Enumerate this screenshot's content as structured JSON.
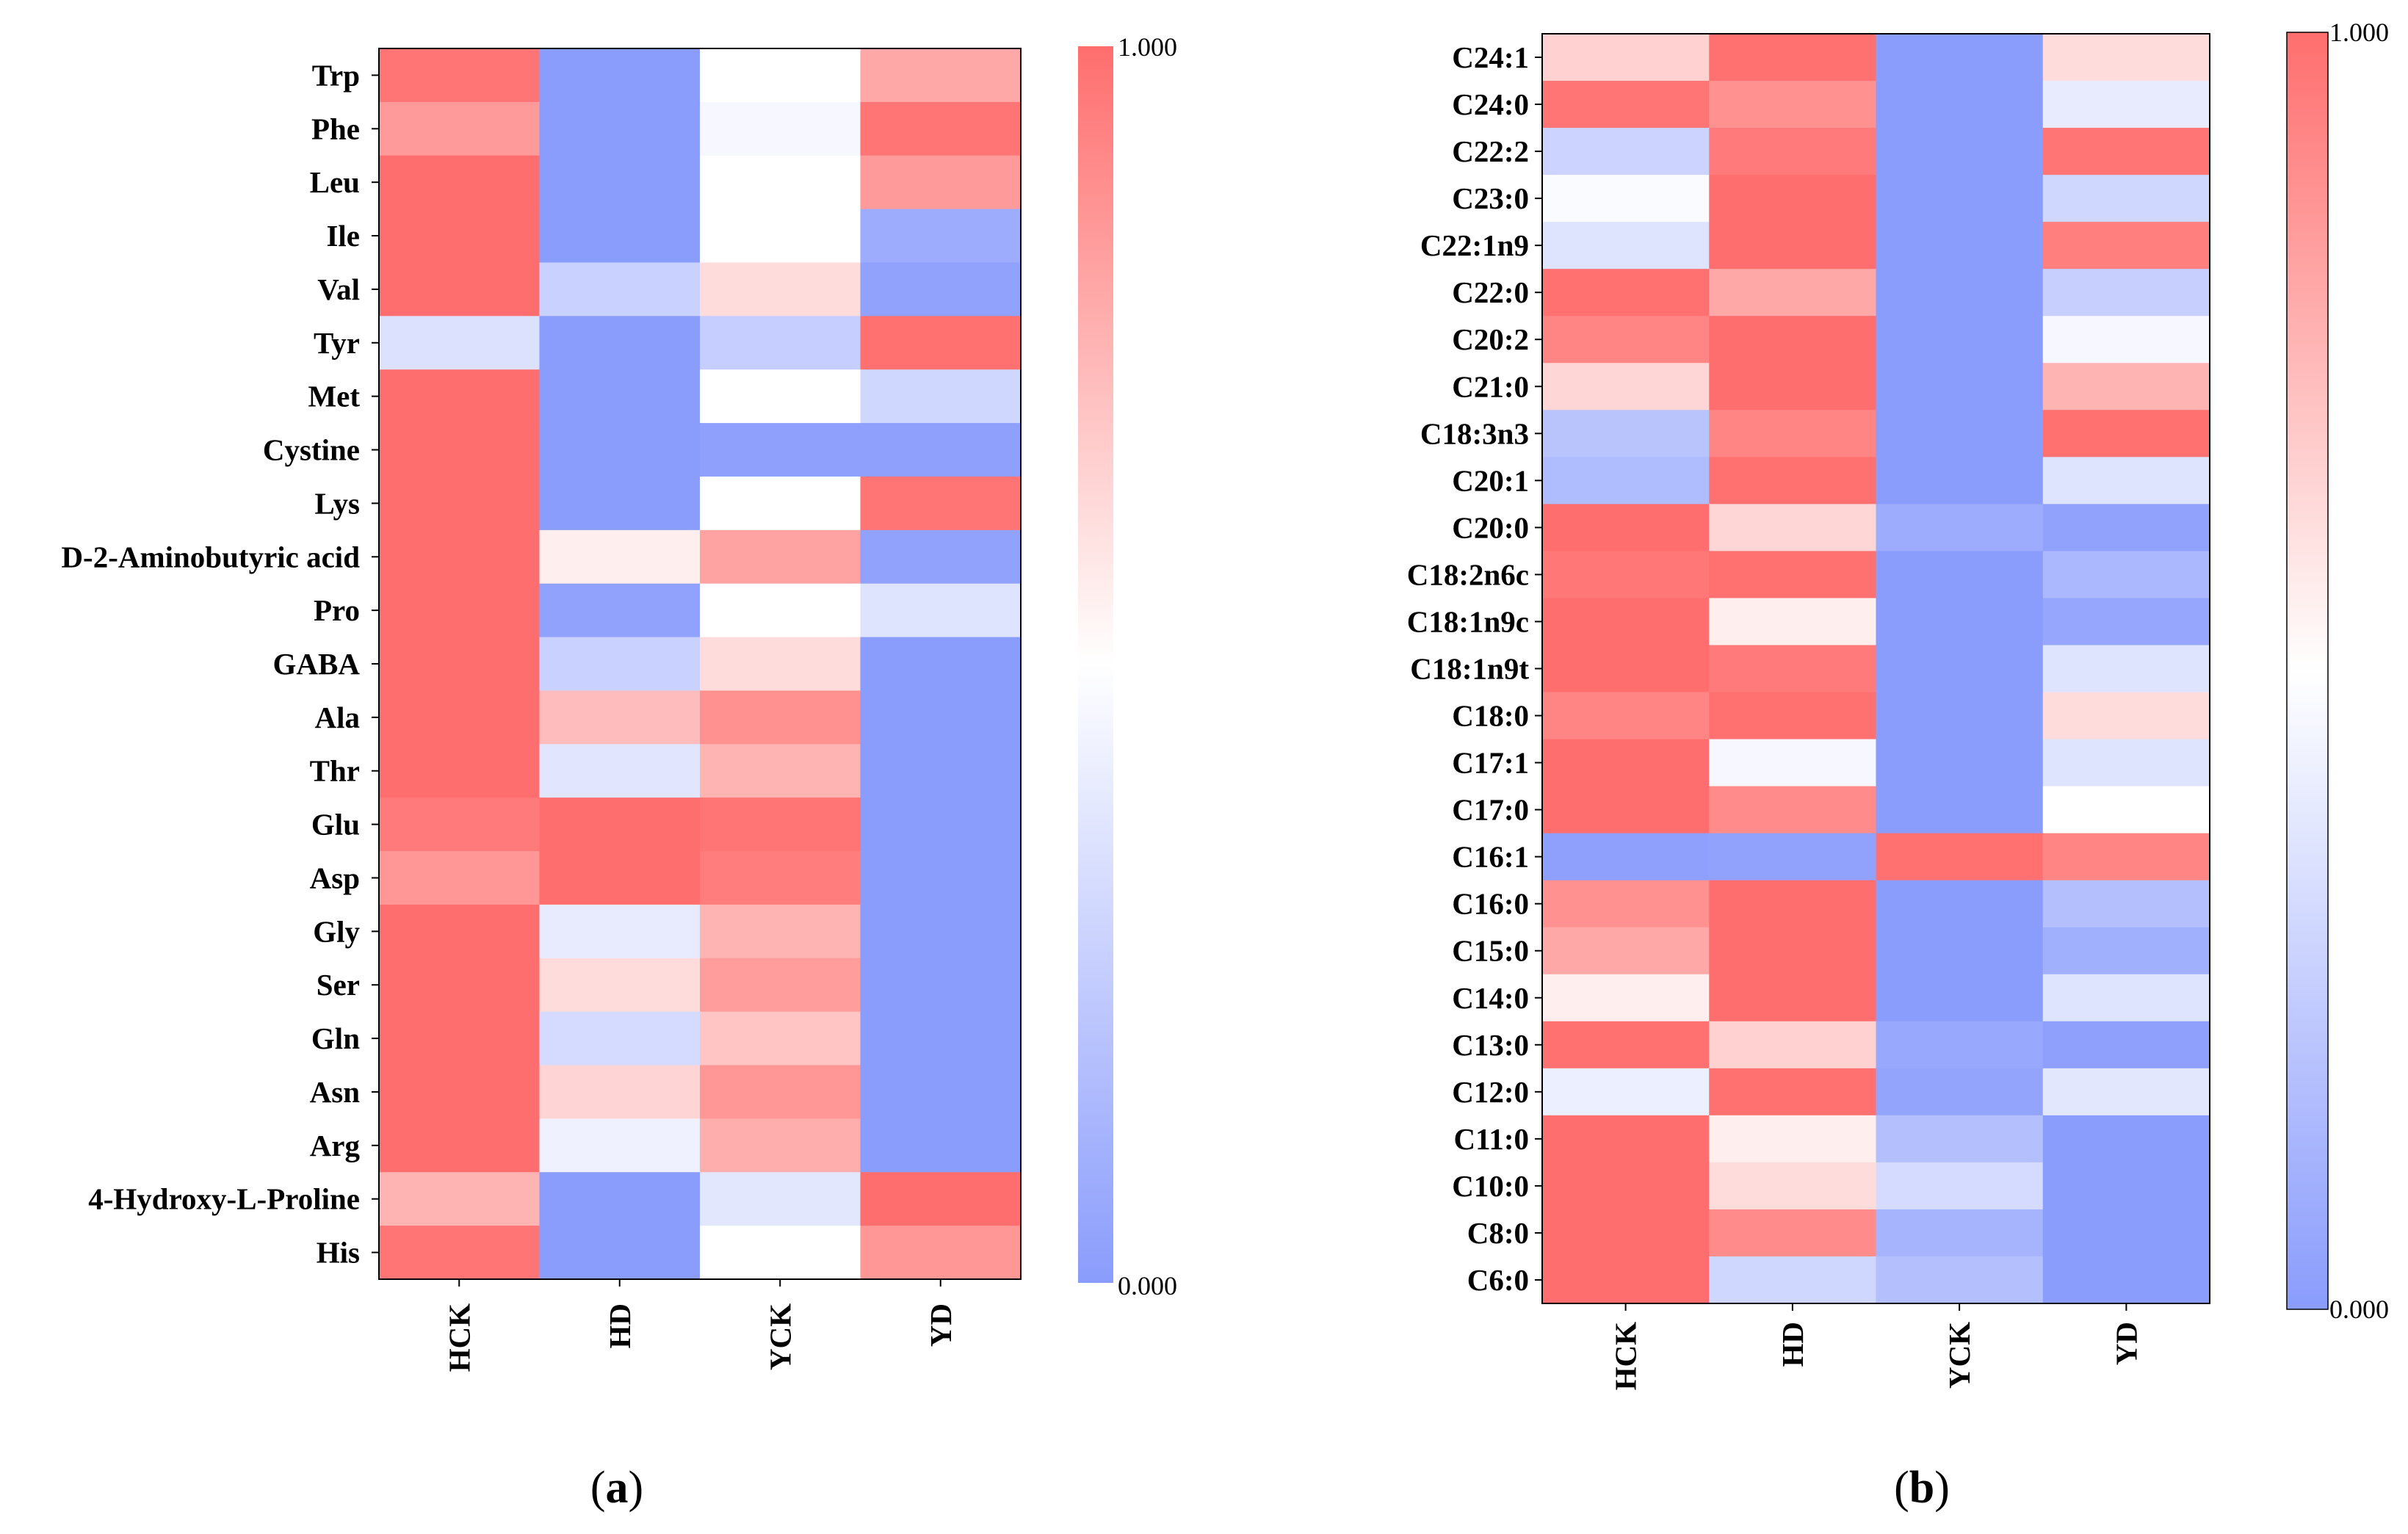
{
  "figure": {
    "panel_a_label": "a",
    "panel_b_label": "b",
    "paren_open": "(",
    "paren_close": ")"
  },
  "colors": {
    "low": "#8a9cfc",
    "mid": "#ffffff",
    "high": "#ff6e6e"
  },
  "chart_data": [
    {
      "type": "heatmap",
      "panel": "a",
      "title": "",
      "columns": [
        "HCK",
        "HD",
        "YCK",
        "YD"
      ],
      "rows": [
        "Trp",
        "Phe",
        "Leu",
        "Ile",
        "Val",
        "Tyr",
        "Met",
        "Cystine",
        "Lys",
        "D-2-Aminobutyric acid",
        "Pro",
        "GABA",
        "Ala",
        "Thr",
        "Glu",
        "Asp",
        "Gly",
        "Ser",
        "Gln",
        "Asn",
        "Arg",
        "4-Hydroxy-L-Proline",
        "His"
      ],
      "values": [
        [
          0.98,
          0.0,
          0.5,
          0.8
        ],
        [
          0.85,
          0.0,
          0.46,
          0.98
        ],
        [
          1.0,
          0.0,
          0.5,
          0.85
        ],
        [
          1.0,
          0.0,
          0.5,
          0.08
        ],
        [
          1.0,
          0.27,
          0.62,
          0.03
        ],
        [
          0.35,
          0.0,
          0.25,
          0.99
        ],
        [
          1.0,
          0.0,
          0.5,
          0.3
        ],
        [
          1.0,
          0.0,
          0.02,
          0.02
        ],
        [
          1.0,
          0.0,
          0.5,
          0.98
        ],
        [
          1.0,
          0.56,
          0.82,
          0.03
        ],
        [
          1.0,
          0.03,
          0.5,
          0.36
        ],
        [
          1.0,
          0.27,
          0.62,
          0.0
        ],
        [
          1.0,
          0.73,
          0.88,
          0.0
        ],
        [
          1.0,
          0.37,
          0.76,
          0.0
        ],
        [
          0.96,
          1.0,
          0.98,
          0.0
        ],
        [
          0.86,
          1.0,
          0.95,
          0.0
        ],
        [
          1.0,
          0.4,
          0.76,
          0.0
        ],
        [
          1.0,
          0.62,
          0.84,
          0.0
        ],
        [
          1.0,
          0.32,
          0.7,
          0.0
        ],
        [
          1.0,
          0.65,
          0.86,
          0.0
        ],
        [
          1.0,
          0.43,
          0.78,
          0.0
        ],
        [
          0.76,
          0.0,
          0.38,
          1.0
        ],
        [
          0.98,
          0.0,
          0.5,
          0.86
        ]
      ],
      "colorbar": {
        "min_label": "0.000",
        "max_label": "1.000",
        "range": [
          0,
          1
        ]
      }
    },
    {
      "type": "heatmap",
      "panel": "b",
      "title": "",
      "columns": [
        "HCK",
        "HD",
        "YCK",
        "YD"
      ],
      "rows": [
        "C24:1",
        "C24:0",
        "C22:2",
        "C23:0",
        "C22:1n9",
        "C22:0",
        "C20:2",
        "C21:0",
        "C18:3n3",
        "C20:1",
        "C20:0",
        "C18:2n6c",
        "C18:1n9c",
        "C18:1n9t",
        "C18:0",
        "C17:1",
        "C17:0",
        "C16:1",
        "C16:0",
        "C15:0",
        "C14:0",
        "C13:0",
        "C12:0",
        "C11:0",
        "C10:0",
        "C8:0",
        "C6:0"
      ],
      "values": [
        [
          0.66,
          0.99,
          0.0,
          0.62
        ],
        [
          0.98,
          0.88,
          0.0,
          0.4
        ],
        [
          0.28,
          0.96,
          0.0,
          0.98
        ],
        [
          0.48,
          1.0,
          0.0,
          0.3
        ],
        [
          0.36,
          1.0,
          0.0,
          0.94
        ],
        [
          0.99,
          0.8,
          0.0,
          0.26
        ],
        [
          0.92,
          1.0,
          0.0,
          0.46
        ],
        [
          0.64,
          1.0,
          0.0,
          0.76
        ],
        [
          0.2,
          0.92,
          0.0,
          0.99
        ],
        [
          0.16,
          0.99,
          0.0,
          0.36
        ],
        [
          1.0,
          0.64,
          0.08,
          0.03
        ],
        [
          0.97,
          0.99,
          0.0,
          0.14
        ],
        [
          1.0,
          0.56,
          0.0,
          0.05
        ],
        [
          1.0,
          0.96,
          0.0,
          0.36
        ],
        [
          0.92,
          0.99,
          0.0,
          0.62
        ],
        [
          1.0,
          0.46,
          0.0,
          0.36
        ],
        [
          1.0,
          0.9,
          0.0,
          0.5
        ],
        [
          0.02,
          0.03,
          0.99,
          0.92
        ],
        [
          0.88,
          1.0,
          0.0,
          0.18
        ],
        [
          0.8,
          1.0,
          0.0,
          0.1
        ],
        [
          0.56,
          1.0,
          0.0,
          0.36
        ],
        [
          0.99,
          0.66,
          0.06,
          0.02
        ],
        [
          0.42,
          0.99,
          0.04,
          0.38
        ],
        [
          1.0,
          0.56,
          0.18,
          0.0
        ],
        [
          1.0,
          0.62,
          0.32,
          0.0
        ],
        [
          1.0,
          0.9,
          0.12,
          0.0
        ],
        [
          1.0,
          0.3,
          0.18,
          0.0
        ]
      ],
      "colorbar": {
        "min_label": "0.000",
        "max_label": "1.000",
        "range": [
          0,
          1
        ]
      }
    }
  ]
}
